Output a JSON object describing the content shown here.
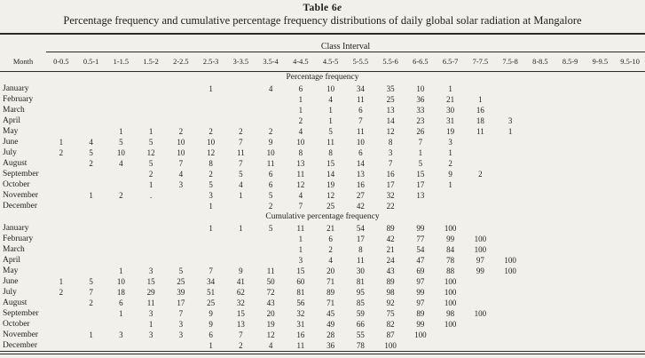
{
  "header": {
    "table_label_prefix": "Table 6",
    "table_label_italic": "e",
    "title": "Percentage frequency and cumulative percentage frequency distributions of daily global solar radiation at Mangalore"
  },
  "table": {
    "group_header": "Class Interval",
    "month_column_label": "Month",
    "class_intervals": [
      "0-0.5",
      "0.5-1",
      "1-1.5",
      "1.5-2",
      "2-2.5",
      "2.5-3",
      "3-3.5",
      "3.5-4",
      "4-4.5",
      "4.5-5",
      "5-5.5",
      "5.5-6",
      "6-6.5",
      "6.5-7",
      "7-7.5",
      "7.5-8",
      "8-8.5",
      "8.5-9",
      "9-9.5",
      "9.5-10"
    ],
    "sections": [
      {
        "label": "Percentage frequency",
        "rows": [
          {
            "month": "January",
            "values": [
              "",
              "",
              "",
              "",
              "",
              "1",
              "",
              "4",
              "6",
              "10",
              "34",
              "35",
              "10",
              "1",
              "",
              "",
              "",
              "",
              "",
              ""
            ]
          },
          {
            "month": "February",
            "values": [
              "",
              "",
              "",
              "",
              "",
              "",
              "",
              "",
              "1",
              "4",
              "11",
              "25",
              "36",
              "21",
              "1",
              "",
              "",
              "",
              "",
              ""
            ]
          },
          {
            "month": "March",
            "values": [
              "",
              "",
              "",
              "",
              "",
              "",
              "",
              "",
              "1",
              "1",
              "6",
              "13",
              "33",
              "30",
              "16",
              "",
              "",
              "",
              "",
              ""
            ]
          },
          {
            "month": "April",
            "values": [
              "",
              "",
              "",
              "",
              "",
              "",
              "",
              "",
              "2",
              "1",
              "7",
              "14",
              "23",
              "31",
              "18",
              "3",
              "",
              "",
              "",
              ""
            ]
          },
          {
            "month": "May",
            "values": [
              "",
              "",
              "1",
              "1",
              "2",
              "2",
              "2",
              "2",
              "4",
              "5",
              "11",
              "12",
              "26",
              "19",
              "11",
              "1",
              "",
              "",
              "",
              ""
            ]
          },
          {
            "month": "June",
            "values": [
              "1",
              "4",
              "5",
              "5",
              "10",
              "10",
              "7",
              "9",
              "10",
              "11",
              "10",
              "8",
              "7",
              "3",
              "",
              "",
              "",
              "",
              "",
              ""
            ]
          },
          {
            "month": "July",
            "values": [
              "2",
              "5",
              "10",
              "12",
              "10",
              "12",
              "11",
              "10",
              "8",
              "8",
              "6",
              "3",
              "1",
              "1",
              "",
              "",
              "",
              "",
              "",
              ""
            ]
          },
          {
            "month": "August",
            "values": [
              "",
              "2",
              "4",
              "5",
              "7",
              "8",
              "7",
              "11",
              "13",
              "15",
              "14",
              "7",
              "5",
              "2",
              "",
              "",
              "",
              "",
              "",
              ""
            ]
          },
          {
            "month": "September",
            "values": [
              "",
              "",
              "",
              "2",
              "4",
              "2",
              "5",
              "6",
              "11",
              "14",
              "13",
              "16",
              "15",
              "9",
              "2",
              "",
              "",
              "",
              "",
              ""
            ]
          },
          {
            "month": "October",
            "values": [
              "",
              "",
              "",
              "1",
              "3",
              "5",
              "4",
              "6",
              "12",
              "19",
              "16",
              "17",
              "17",
              "1",
              "",
              "",
              "",
              "",
              "",
              ""
            ]
          },
          {
            "month": "November",
            "values": [
              "",
              "1",
              "2",
              ".",
              "",
              "3",
              "1",
              "5",
              "4",
              "12",
              "27",
              "32",
              "13",
              "",
              "",
              "",
              "",
              "",
              "",
              ""
            ]
          },
          {
            "month": "December",
            "values": [
              "",
              "",
              "",
              "",
              "",
              "1",
              "",
              "2",
              "7",
              "25",
              "42",
              "22",
              "",
              "",
              "",
              "",
              "",
              "",
              "",
              ""
            ]
          }
        ]
      },
      {
        "label": "Cumulative percentage frequency",
        "rows": [
          {
            "month": "January",
            "values": [
              "",
              "",
              "",
              "",
              "",
              "1",
              "1",
              "5",
              "11",
              "21",
              "54",
              "89",
              "99",
              "100",
              "",
              "",
              "",
              "",
              "",
              ""
            ]
          },
          {
            "month": "February",
            "values": [
              "",
              "",
              "",
              "",
              "",
              "",
              "",
              "",
              "1",
              "6",
              "17",
              "42",
              "77",
              "99",
              "100",
              "",
              "",
              "",
              "",
              ""
            ]
          },
          {
            "month": "March",
            "values": [
              "",
              "",
              "",
              "",
              "",
              "",
              "",
              "",
              "1",
              "2",
              "8",
              "21",
              "54",
              "84",
              "100",
              "",
              "",
              "",
              "",
              ""
            ]
          },
          {
            "month": "April",
            "values": [
              "",
              "",
              "",
              "",
              "",
              "",
              "",
              "",
              "3",
              "4",
              "11",
              "24",
              "47",
              "78",
              "97",
              "100",
              "",
              "",
              "",
              ""
            ]
          },
          {
            "month": "May",
            "values": [
              "",
              "",
              "1",
              "3",
              "5",
              "7",
              "9",
              "11",
              "15",
              "20",
              "30",
              "43",
              "69",
              "88",
              "99",
              "100",
              "",
              "",
              "",
              ""
            ]
          },
          {
            "month": "June",
            "values": [
              "1",
              "5",
              "10",
              "15",
              "25",
              "34",
              "41",
              "50",
              "60",
              "71",
              "81",
              "89",
              "97",
              "100",
              "",
              "",
              "",
              "",
              "",
              ""
            ]
          },
          {
            "month": "July",
            "values": [
              "2",
              "7",
              "18",
              "29",
              "39",
              "51",
              "62",
              "72",
              "81",
              "89",
              "95",
              "98",
              "99",
              "100",
              "",
              "",
              "",
              "",
              "",
              ""
            ]
          },
          {
            "month": "August",
            "values": [
              "",
              "2",
              "6",
              "11",
              "17",
              "25",
              "32",
              "43",
              "56",
              "71",
              "85",
              "92",
              "97",
              "100",
              "",
              "",
              "",
              "",
              "",
              ""
            ]
          },
          {
            "month": "September",
            "values": [
              "",
              "",
              "1",
              "3",
              "7",
              "9",
              "15",
              "20",
              "32",
              "45",
              "59",
              "75",
              "89",
              "98",
              "100",
              "",
              "",
              "",
              "",
              ""
            ]
          },
          {
            "month": "October",
            "values": [
              "",
              "",
              "",
              "1",
              "3",
              "9",
              "13",
              "19",
              "31",
              "49",
              "66",
              "82",
              "99",
              "100",
              "",
              "",
              "",
              "",
              "",
              ""
            ]
          },
          {
            "month": "November",
            "values": [
              "",
              "1",
              "3",
              "3",
              "3",
              "6",
              "7",
              "12",
              "16",
              "28",
              "55",
              "87",
              "100",
              "",
              "",
              "",
              "",
              "",
              "",
              ""
            ]
          },
          {
            "month": "December",
            "values": [
              "",
              "",
              "",
              "",
              "",
              "1",
              "2",
              "4",
              "11",
              "36",
              "78",
              "100",
              "",
              "",
              "",
              "",
              "",
              "",
              "",
              ""
            ]
          }
        ]
      }
    ]
  }
}
